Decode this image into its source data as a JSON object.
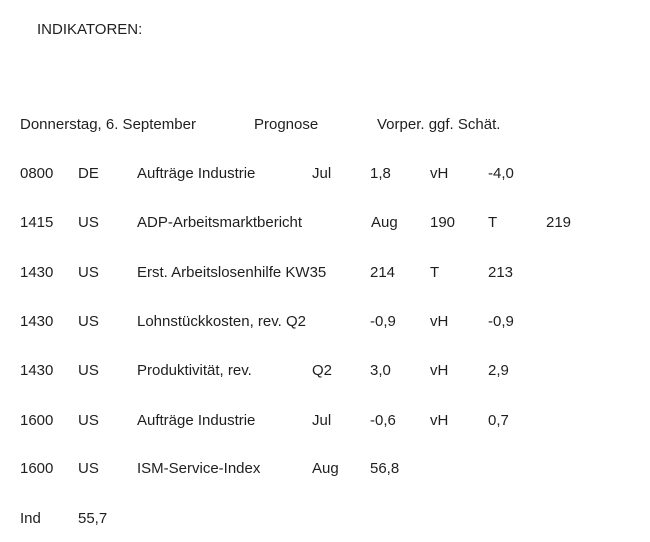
{
  "page_title": "INDIKATOREN:",
  "table": {
    "header": {
      "date_label": "Donnerstag, 6. September",
      "forecast_label": "Prognose",
      "previous_label": "Vorper. ggf. Schät."
    },
    "rows": [
      {
        "time": "0800",
        "country": "DE",
        "name": "Aufträge Industrie",
        "period": "Jul",
        "forecast": "1,8",
        "unit": "vH",
        "previous": "-4,0"
      },
      {
        "time": "1415",
        "country": "US",
        "name": "ADP-Arbeitsmarktbericht",
        "period": "Aug",
        "forecast": "190",
        "unit": "T",
        "previous": "219"
      },
      {
        "time": "1430",
        "country": "US",
        "name": "Erst. Arbeitslosenhilfe",
        "period": "KW35",
        "forecast": "214",
        "unit": "T",
        "previous": "213"
      },
      {
        "time": "1430",
        "country": "US",
        "name": "Lohnstückkosten, rev.",
        "period": "Q2",
        "forecast": "-0,9",
        "unit": "vH",
        "previous": "-0,9"
      },
      {
        "time": "1430",
        "country": "US",
        "name": "Produktivität, rev.",
        "period": "Q2",
        "forecast": "3,0",
        "unit": "vH",
        "previous": "2,9"
      },
      {
        "time": "1600",
        "country": "US",
        "name": "Aufträge Industrie",
        "period": "Jul",
        "forecast": "-0,6",
        "unit": "vH",
        "previous": "0,7"
      },
      {
        "time": "1600",
        "country": "US",
        "name": "ISM-Service-Index",
        "period": "Aug",
        "forecast": "56,8",
        "unit": "",
        "previous": ""
      }
    ],
    "footer": {
      "label": "Ind",
      "value": "55,7"
    }
  }
}
